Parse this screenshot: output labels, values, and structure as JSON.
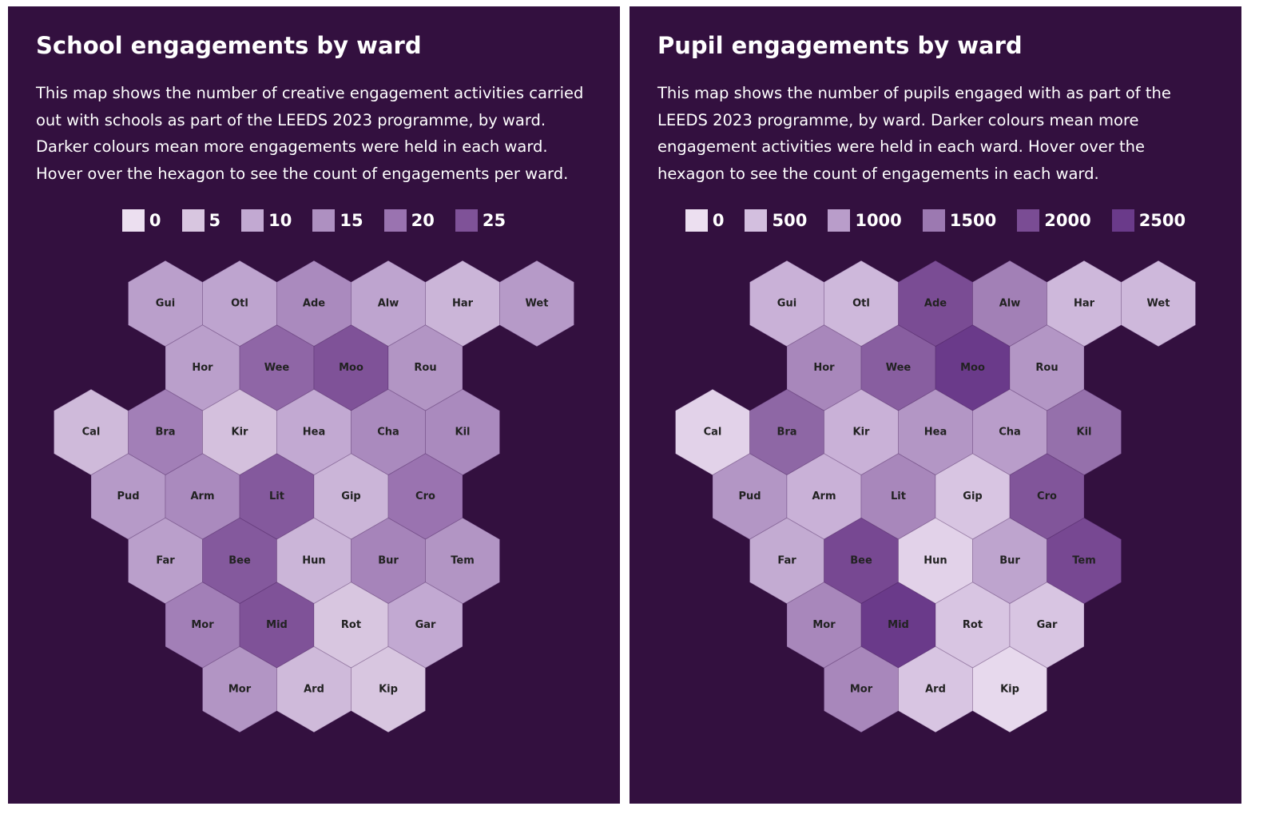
{
  "chart_data": [
    {
      "type": "hexmap",
      "title": "School engagements by ward",
      "subtitle": "This map shows the number of creative engagement activities carried out with schools as part of the LEEDS 2023 programme, by ward. Darker colours mean more engagements were held in each ward. Hover over the hexagon to see the count of engagements per ward.",
      "legend": [
        {
          "value": 0,
          "color": "#ecdff0"
        },
        {
          "value": 5,
          "color": "#d8c6e0"
        },
        {
          "value": 10,
          "color": "#c2a9d2"
        },
        {
          "value": 15,
          "color": "#ae90c1"
        },
        {
          "value": 20,
          "color": "#9a73b0"
        },
        {
          "value": 25,
          "color": "#7f5298"
        }
      ],
      "categories": [
        "Gui",
        "Otl",
        "Ade",
        "Alw",
        "Har",
        "Wet",
        "Hor",
        "Wee",
        "Moo",
        "Rou",
        "Cal",
        "Bra",
        "Kir",
        "Hea",
        "Cha",
        "Kil",
        "Pud",
        "Arm",
        "Lit",
        "Gip",
        "Cro",
        "Far",
        "Bee",
        "Hun",
        "Bur",
        "Tem",
        "Mor",
        "Mid",
        "Rot",
        "Gar",
        "Mor",
        "Ard",
        "Kip"
      ],
      "values": [
        12,
        11,
        16,
        11,
        8,
        13,
        12,
        22,
        28,
        14,
        7,
        18,
        6,
        10,
        16,
        16,
        13,
        16,
        24,
        8,
        20,
        12,
        24,
        8,
        17,
        14,
        18,
        25,
        5,
        10,
        14,
        7,
        5
      ]
    },
    {
      "type": "hexmap",
      "title": "Pupil engagements by ward",
      "subtitle": "This map shows the number of pupils engaged with as part of the LEEDS 2023 programme, by ward. Darker colours mean more engagement activities were held in each ward. Hover over the hexagon to see the count of engagements in each ward.",
      "legend": [
        {
          "value": 0,
          "color": "#ecdff0"
        },
        {
          "value": 500,
          "color": "#d3bfdf"
        },
        {
          "value": 1000,
          "color": "#b99dca"
        },
        {
          "value": 1500,
          "color": "#9c79b1"
        },
        {
          "value": 2000,
          "color": "#7a4c94"
        },
        {
          "value": 2500,
          "color": "#6a3a8a"
        }
      ],
      "categories": [
        "Gui",
        "Otl",
        "Ade",
        "Alw",
        "Har",
        "Wet",
        "Hor",
        "Wee",
        "Moo",
        "Rou",
        "Cal",
        "Bra",
        "Kir",
        "Hea",
        "Cha",
        "Kil",
        "Pud",
        "Arm",
        "Lit",
        "Gip",
        "Cro",
        "Far",
        "Bee",
        "Hun",
        "Bur",
        "Tem",
        "Mor",
        "Mid",
        "Rot",
        "Gar",
        "Mor",
        "Ard",
        "Kip"
      ],
      "values": [
        700,
        600,
        2000,
        1400,
        600,
        600,
        1300,
        1800,
        2500,
        1100,
        200,
        1700,
        700,
        1100,
        1000,
        1600,
        1100,
        700,
        1300,
        400,
        1900,
        800,
        2100,
        200,
        900,
        2100,
        1300,
        2500,
        400,
        400,
        1300,
        400,
        100
      ]
    }
  ]
}
